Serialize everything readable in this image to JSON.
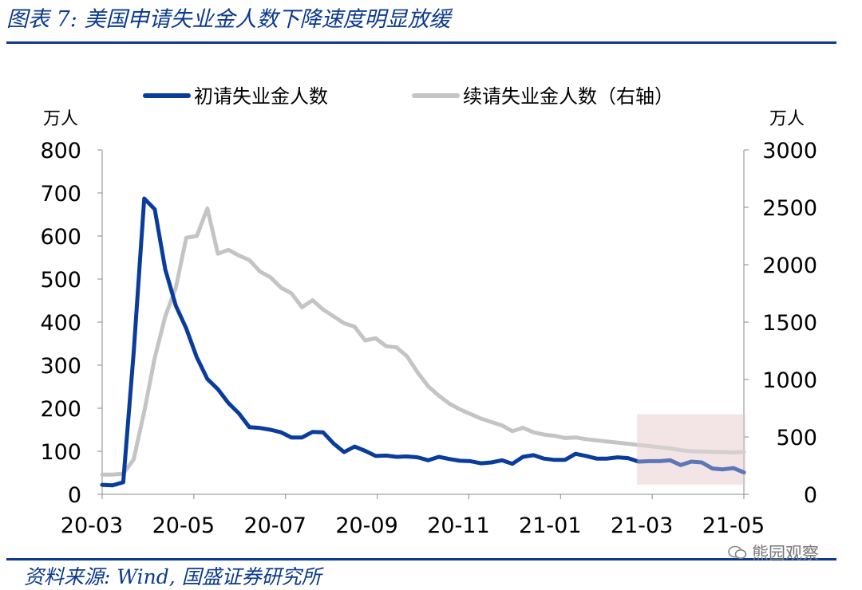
{
  "figure_title": "图表 7:  美国申请失业金人数下降速度明显放缓",
  "source": "资料来源:  Wind,  国盛证券研究所",
  "watermark": "熊园观察",
  "colors": {
    "initial_claims": "#0a3c9e",
    "continuing_claims": "#c4c4c4",
    "highlight": "#f3e4e6",
    "rule": "#0b3a8f"
  },
  "chart_data": {
    "type": "line",
    "left_unit": "万人",
    "right_unit": "万人",
    "ylim_left": [
      0,
      800
    ],
    "ylim_right": [
      0,
      3000
    ],
    "left_ticks": [
      "0",
      "100",
      "200",
      "300",
      "400",
      "500",
      "600",
      "700",
      "800"
    ],
    "right_ticks": [
      "0",
      "500",
      "1000",
      "1500",
      "2000",
      "2500",
      "3000"
    ],
    "x_ticks": [
      "20-03",
      "20-05",
      "20-07",
      "20-09",
      "20-11",
      "21-01",
      "21-03",
      "21-05"
    ],
    "legend_position": "top",
    "highlight": {
      "x_start_week": 51,
      "x_end_week": 61,
      "y_top_left_units": 186
    },
    "series": [
      {
        "name": "初请失业金人数",
        "axis": "left",
        "values": [
          22,
          21,
          28,
          330,
          687,
          662,
          522,
          438,
          385,
          318,
          268,
          244,
          212,
          188,
          156,
          154,
          150,
          144,
          132,
          132,
          145,
          144,
          118,
          98,
          111,
          101,
          89,
          90,
          87,
          88,
          86,
          79,
          87,
          82,
          78,
          77,
          72,
          74,
          79,
          71,
          87,
          91,
          83,
          80,
          80,
          94,
          89,
          83,
          83,
          86,
          84,
          76,
          77,
          77,
          79,
          68,
          76,
          74,
          60,
          58,
          61,
          51
        ]
      },
      {
        "name": "续请失业金人数（右轴）",
        "axis": "right",
        "values": [
          172,
          172,
          180,
          305,
          720,
          1190,
          1550,
          1800,
          2235,
          2250,
          2490,
          2095,
          2130,
          2080,
          2040,
          1940,
          1890,
          1800,
          1750,
          1630,
          1690,
          1610,
          1550,
          1490,
          1460,
          1340,
          1360,
          1290,
          1280,
          1200,
          1060,
          940,
          860,
          790,
          740,
          700,
          660,
          630,
          600,
          550,
          580,
          540,
          520,
          510,
          490,
          495,
          480,
          470,
          460,
          450,
          440,
          430,
          420,
          410,
          400,
          385,
          375,
          372,
          370,
          368,
          365,
          370
        ]
      }
    ]
  }
}
